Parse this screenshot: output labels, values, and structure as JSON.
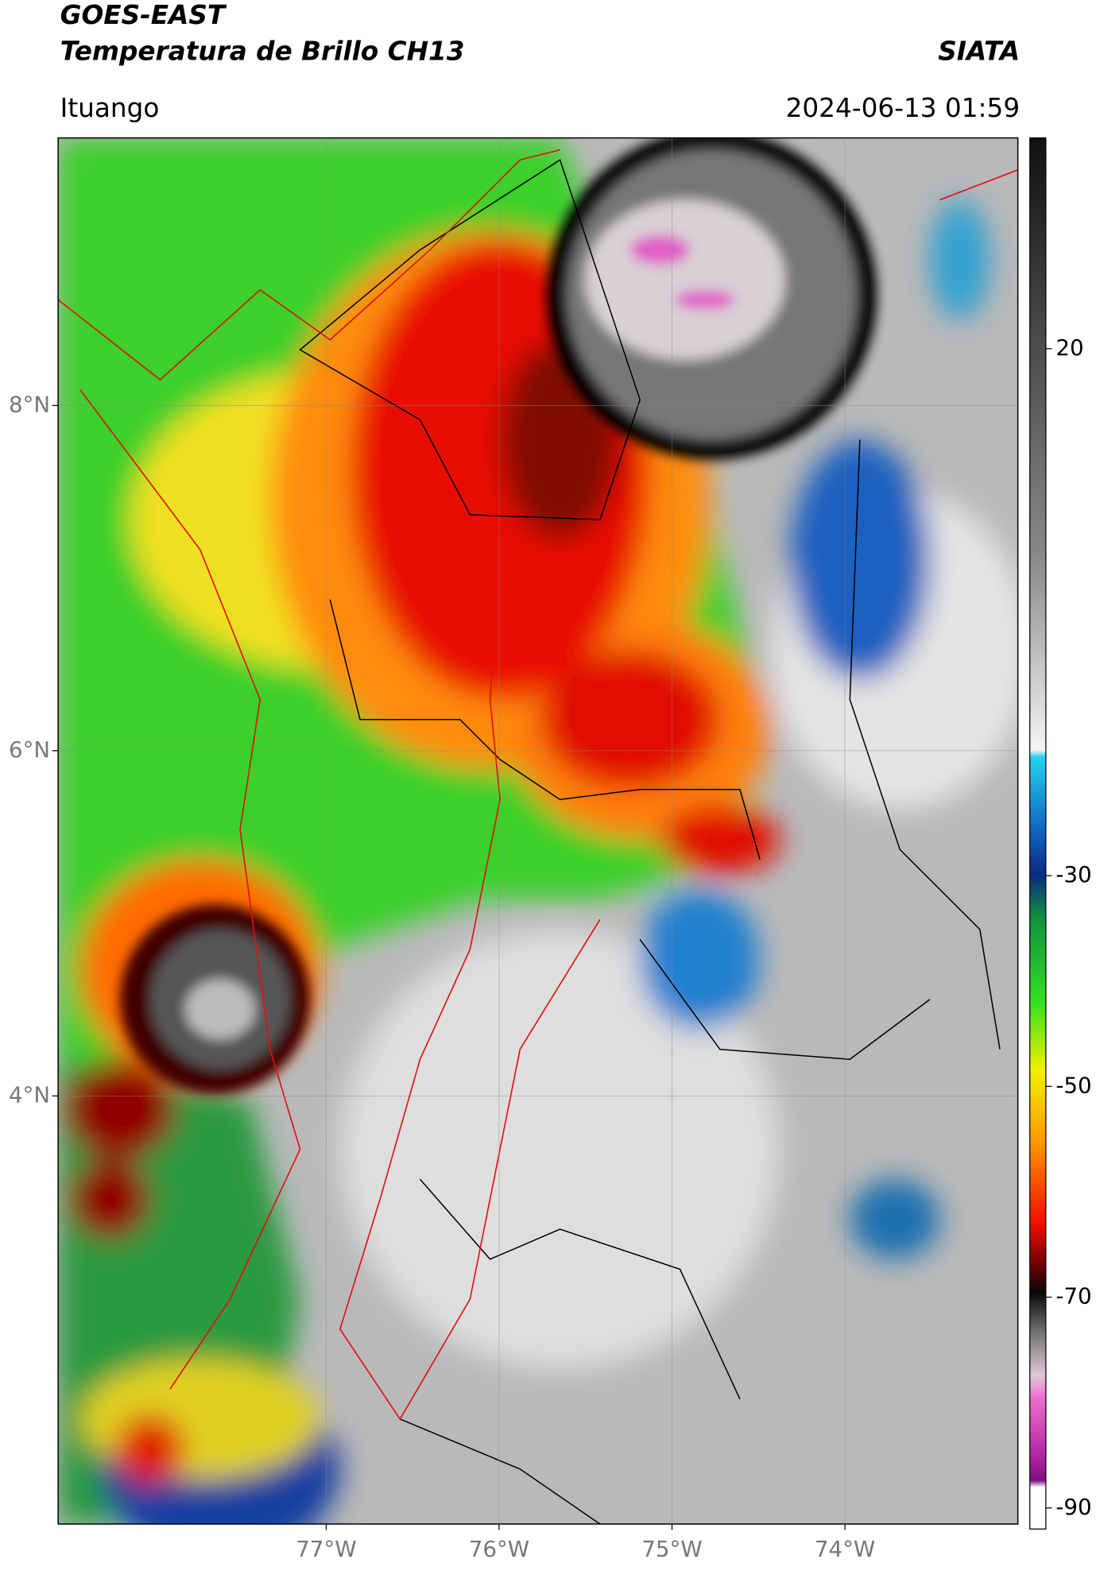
{
  "title": "GOES-EAST",
  "subtitle": "Temperatura de Brillo CH13",
  "credit": "SIATA",
  "location": "Ituango",
  "timestamp": "2024-06-13 01:59",
  "map": {
    "xlim": [
      -78.55,
      -73.0
    ],
    "ylim": [
      1.52,
      9.55
    ],
    "xticks": [
      {
        "value": -77,
        "label": "77°W"
      },
      {
        "value": -76,
        "label": "76°W"
      },
      {
        "value": -75,
        "label": "75°W"
      },
      {
        "value": -74,
        "label": "74°W"
      }
    ],
    "yticks": [
      {
        "value": 8,
        "label": "8°N"
      },
      {
        "value": 6,
        "label": "6°N"
      },
      {
        "value": 4,
        "label": "4°N"
      }
    ],
    "grid": true
  },
  "colorbar": {
    "clim": [
      -92,
      40
    ],
    "ticks": [
      20,
      -30,
      -50,
      -70,
      -90
    ]
  }
}
